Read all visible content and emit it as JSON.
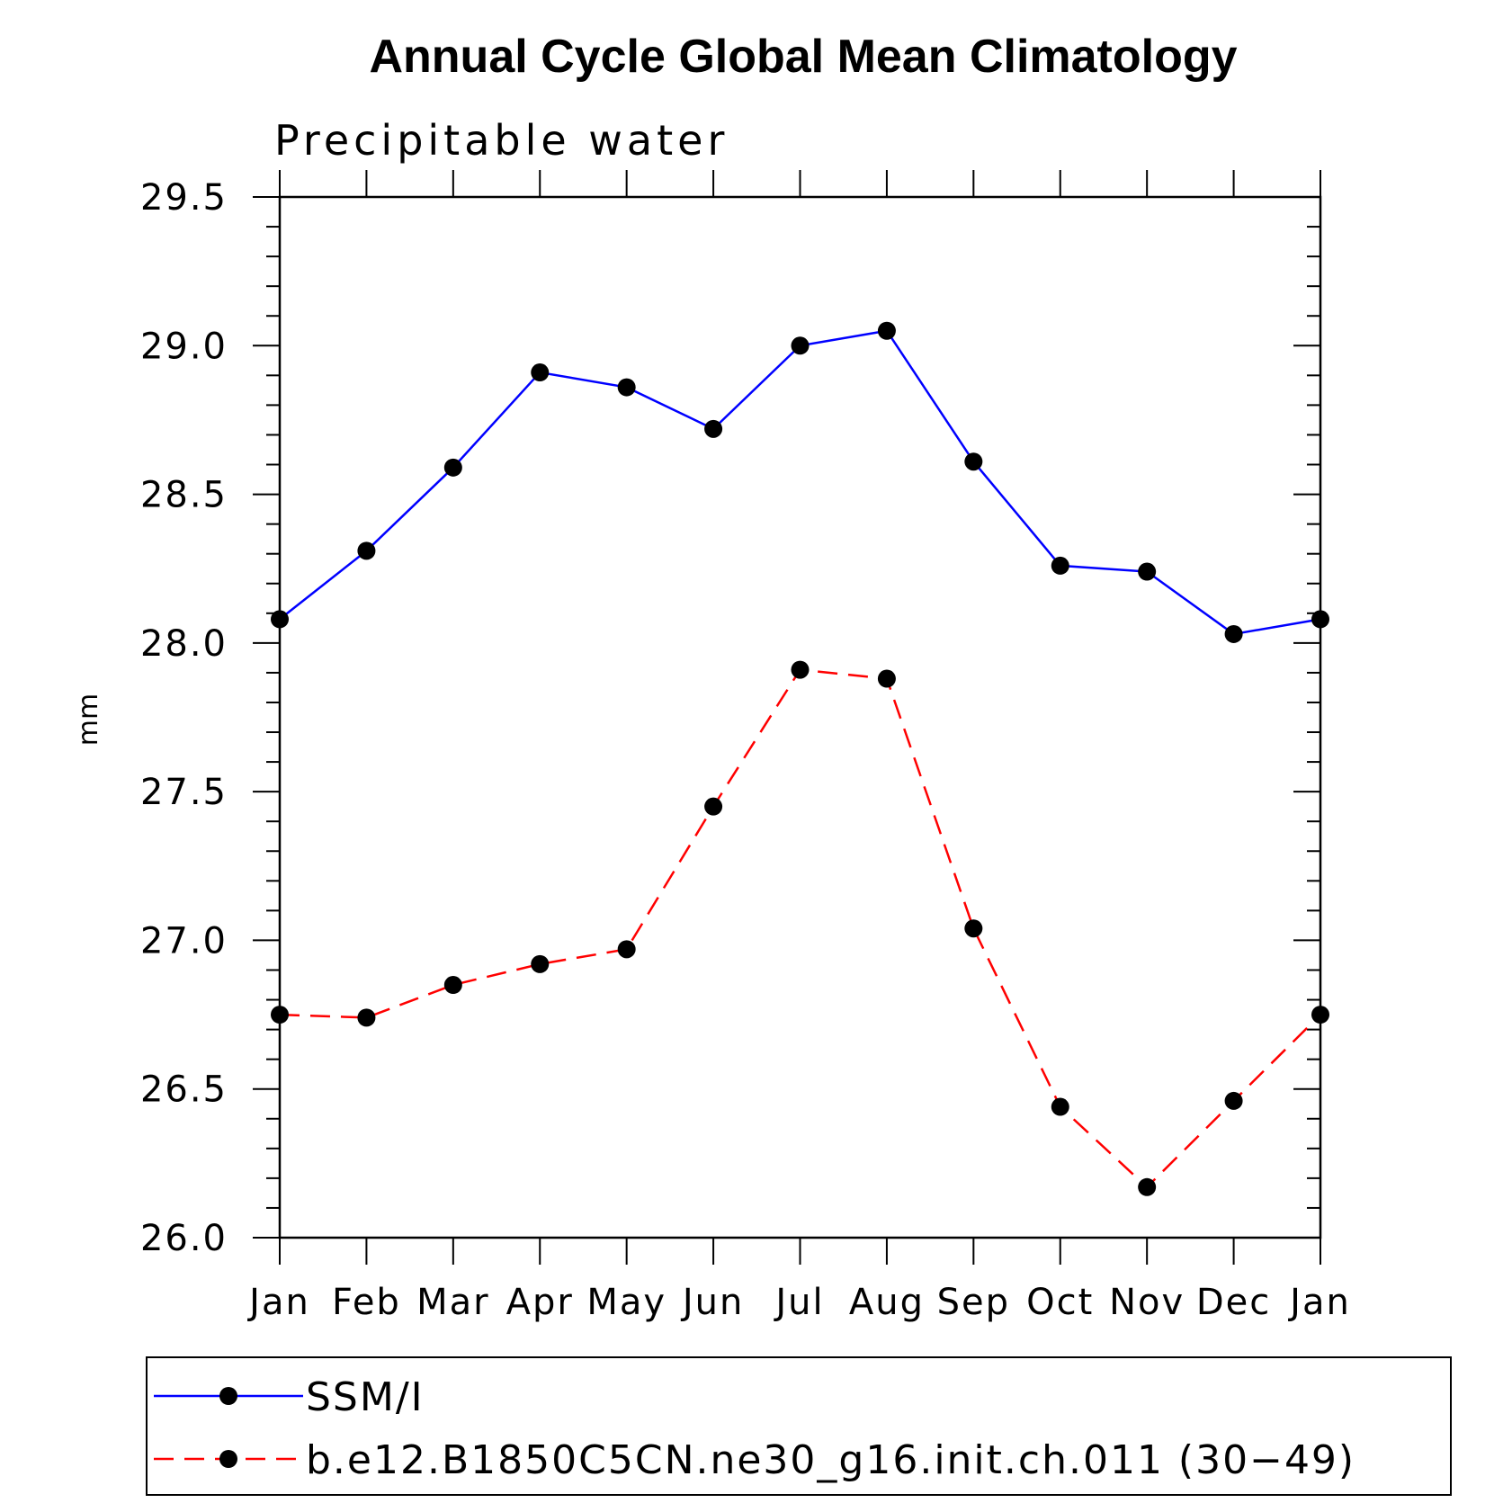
{
  "chart_data": {
    "type": "line",
    "title": "Annual Cycle Global Mean Climatology",
    "subtitle": "Precipitable water",
    "xlabel": "",
    "ylabel": "mm",
    "categories": [
      "Jan",
      "Feb",
      "Mar",
      "Apr",
      "May",
      "Jun",
      "Jul",
      "Aug",
      "Sep",
      "Oct",
      "Nov",
      "Dec",
      "Jan"
    ],
    "ylim": [
      26.0,
      29.5
    ],
    "yticks": [
      "26.0",
      "26.5",
      "27.0",
      "27.5",
      "28.0",
      "28.5",
      "29.0",
      "29.5"
    ],
    "series": [
      {
        "name": "SSM/I",
        "color": "#0000ff",
        "dash": "solid",
        "marker": "filled-circle",
        "values": [
          28.08,
          28.31,
          28.59,
          28.91,
          28.86,
          28.72,
          29.0,
          29.05,
          28.61,
          28.26,
          28.24,
          28.03,
          28.08
        ]
      },
      {
        "name": "b.e12.B1850C5CN.ne30_g16.init.ch.011 (30−49)",
        "color": "#ff0000",
        "dash": "dashed",
        "marker": "filled-circle",
        "values": [
          26.75,
          26.74,
          26.85,
          26.92,
          26.97,
          27.45,
          27.91,
          27.88,
          27.04,
          26.44,
          26.17,
          26.46,
          26.75
        ]
      }
    ],
    "grid": false,
    "legend_position": "bottom"
  }
}
